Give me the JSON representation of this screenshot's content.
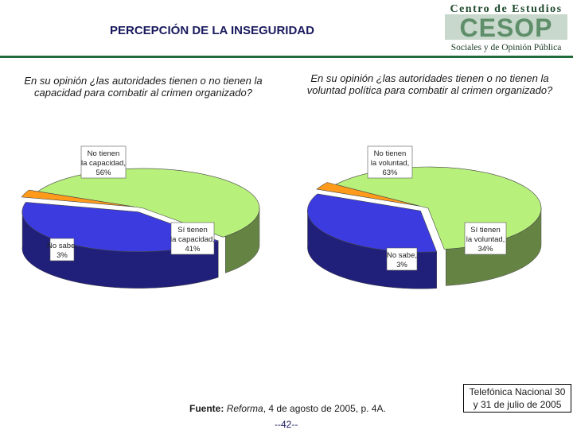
{
  "header": {
    "title": "PERCEPCIÓN DE LA INSEGURIDAD",
    "logo_line1": "Centro de Estudios",
    "logo_mark": "CESOP",
    "logo_line2": "Sociales y de Opinión Pública"
  },
  "colors": {
    "no_tienen": "#b8f07c",
    "si_tienen": "#3b3be0",
    "no_sabe": "#ff9a1a",
    "dark_accent": "#1f6b3a"
  },
  "chart_data": [
    {
      "type": "pie",
      "title": "En su opinión ¿las autoridades tienen o no tienen la capacidad para combatir al crimen organizado?",
      "slices": [
        {
          "label": "No tienen la capacidad,",
          "value": 56,
          "display": "56%",
          "color": "#b8f07c"
        },
        {
          "label": "Sí tienen la capacidad,",
          "value": 41,
          "display": "41%",
          "color": "#3b3be0"
        },
        {
          "label": "No sabe,",
          "value": 3,
          "display": "3%",
          "color": "#ff9a1a"
        }
      ]
    },
    {
      "type": "pie",
      "title": "En su opinión ¿las autoridades tienen o no tienen la voluntad política para combatir al crimen organizado?",
      "slices": [
        {
          "label": "No tienen la voluntad,",
          "value": 63,
          "display": "63%",
          "color": "#b8f07c"
        },
        {
          "label": "Sí tienen la voluntad,",
          "value": 34,
          "display": "34%",
          "color": "#3b3be0"
        },
        {
          "label": "No sabe,",
          "value": 3,
          "display": "3%",
          "color": "#ff9a1a"
        }
      ]
    }
  ],
  "footer": {
    "source_label": "Fuente:",
    "source_pub": "Reforma",
    "source_rest": ", 4 de agosto de 2005, p. 4A.",
    "page_number": "--42--",
    "survey": "Telefónica Nacional 30 y 31 de julio de 2005"
  }
}
